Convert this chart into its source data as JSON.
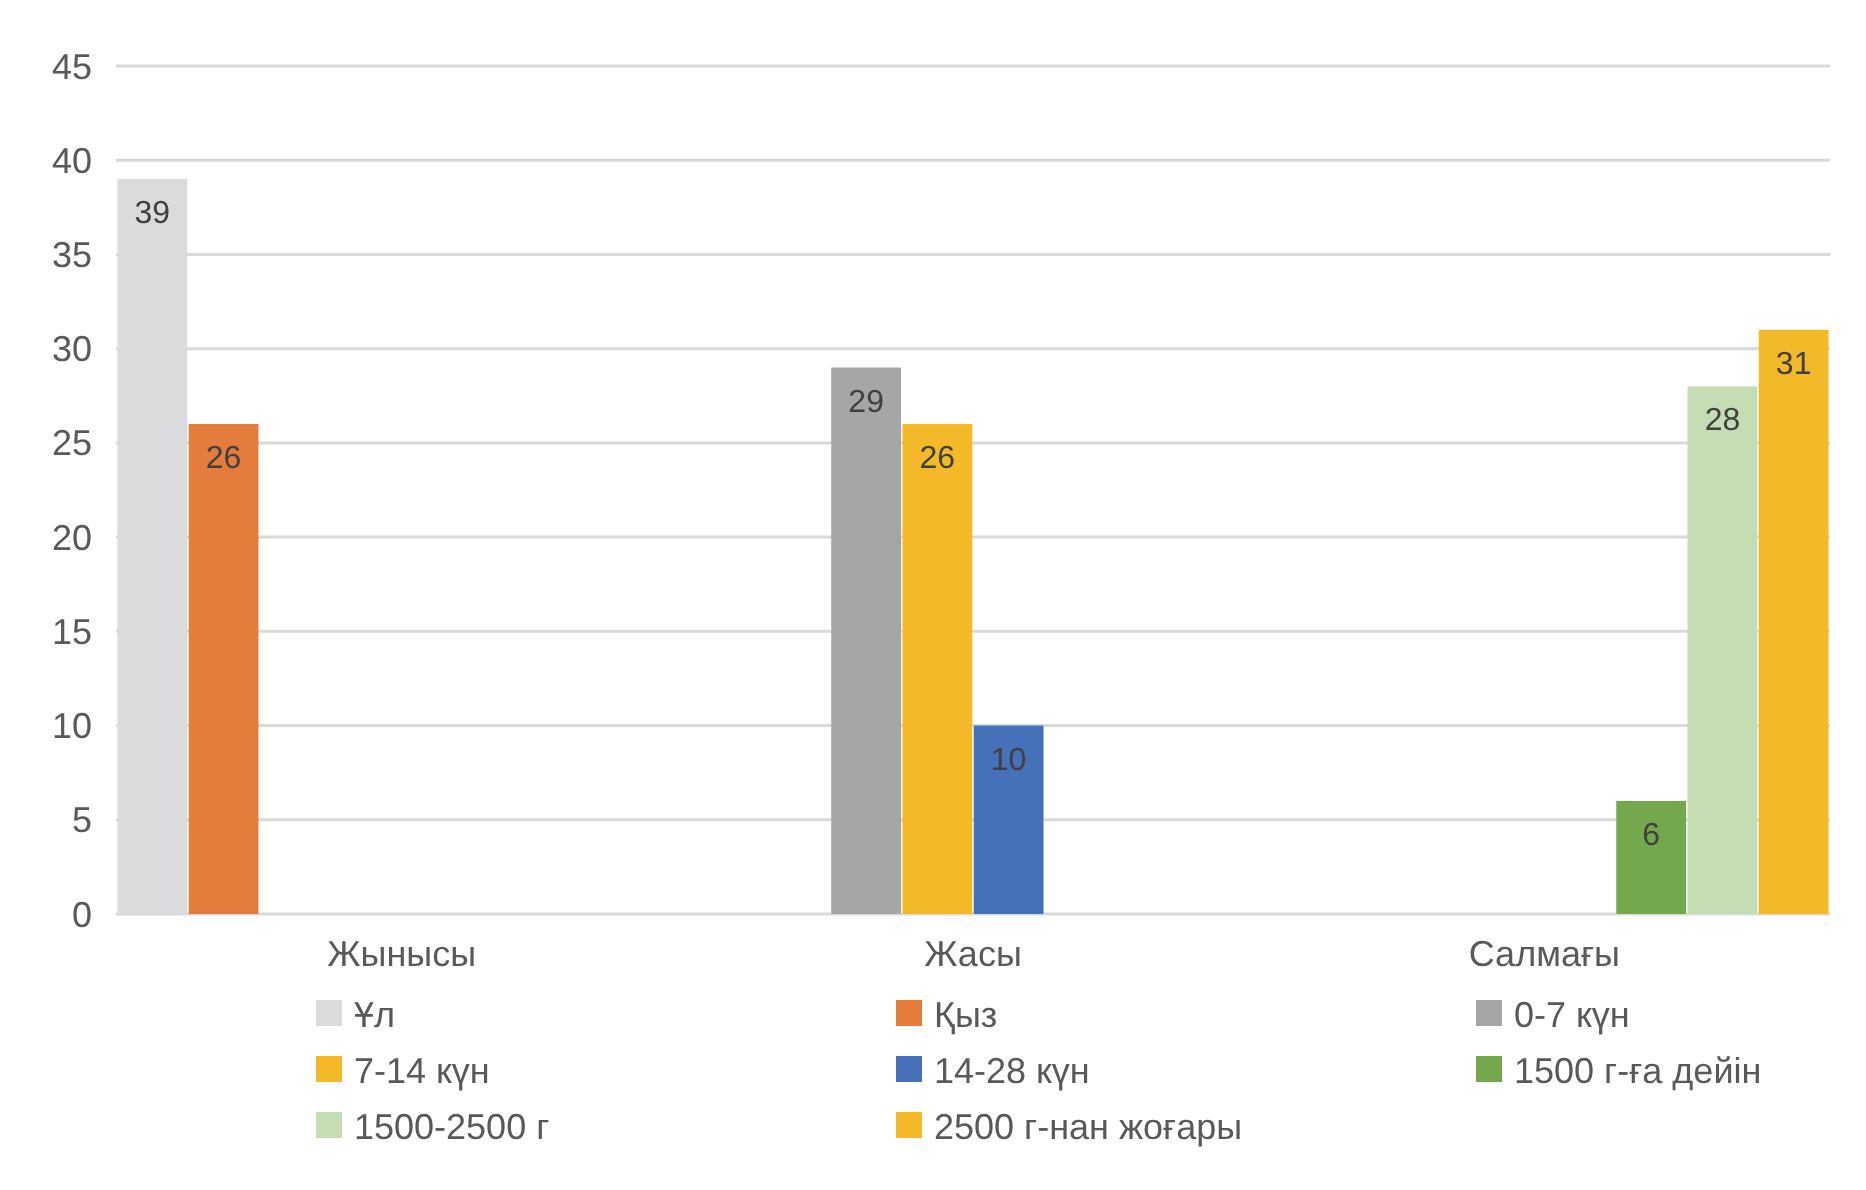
{
  "chart_data": {
    "type": "bar",
    "categories": [
      "Жынысы",
      "Жасы",
      "Салмағы"
    ],
    "series": [
      {
        "name": "Ұл",
        "color": "#dadbdd",
        "values": [
          39,
          null,
          null
        ]
      },
      {
        "name": "Қыз",
        "color": "#e47d3c",
        "values": [
          26,
          null,
          null
        ]
      },
      {
        "name": "0-7 күн",
        "color": "#a6a6a8",
        "values": [
          null,
          29,
          null
        ]
      },
      {
        "name": "7-14 күн",
        "color": "#f4b928",
        "values": [
          null,
          26,
          null
        ]
      },
      {
        "name": "14-28 күн",
        "color": "#4670b8",
        "values": [
          null,
          10,
          null
        ]
      },
      {
        "name": "1500 г-ға дейін",
        "color": "#73a84c",
        "values": [
          null,
          null,
          6
        ]
      },
      {
        "name": "1500-2500 г",
        "color": "#c5ddb5",
        "values": [
          null,
          null,
          28
        ]
      },
      {
        "name": "2500 г-нан жоғары",
        "color": "#f4b928",
        "values": [
          null,
          null,
          31
        ]
      }
    ],
    "ylim": [
      0,
      45
    ],
    "yticks": [
      0,
      5,
      10,
      15,
      20,
      25,
      30,
      35,
      40,
      45
    ],
    "grid": "y",
    "data_labels": true,
    "legend": "bottom"
  }
}
